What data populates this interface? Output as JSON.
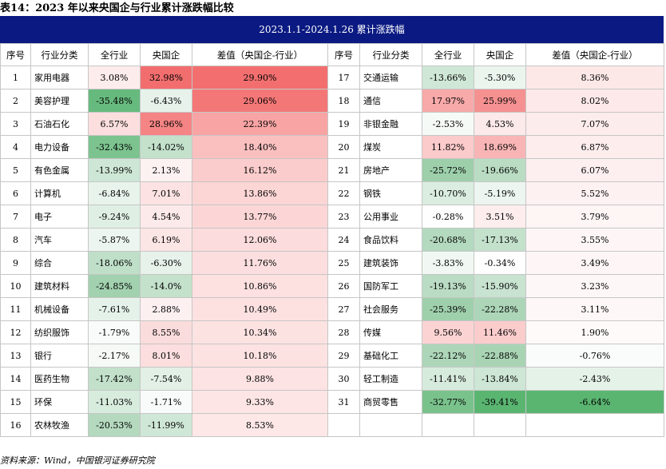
{
  "caption": "表14：2023 年以来央国企与行业累计涨跌幅比较",
  "title": "2023.1.1-2024.1.26 累计涨跌幅",
  "headers": [
    "序号",
    "行业分类",
    "全行业",
    "央国企",
    "差值（央国企-行业）",
    "序号",
    "行业分类",
    "全行业",
    "央国企",
    "差值（央国企-行业）"
  ],
  "left_rows": [
    {
      "no": "1",
      "name": "家用电器",
      "all": "3.08%",
      "soe": "32.98%",
      "diff": "29.90%",
      "c_all": "#fdecec",
      "c_soe": "#f26e6e",
      "c_diff": "#f36f6f"
    },
    {
      "no": "2",
      "name": "美容护理",
      "all": "-35.48%",
      "soe": "-6.43%",
      "diff": "29.06%",
      "c_all": "#67ba7e",
      "c_soe": "#e6f2ea",
      "c_diff": "#f47777"
    },
    {
      "no": "3",
      "name": "石油石化",
      "all": "6.57%",
      "soe": "28.96%",
      "diff": "22.39%",
      "c_all": "#fcdede",
      "c_soe": "#f58484",
      "c_diff": "#f8a4a4"
    },
    {
      "no": "4",
      "name": "电力设备",
      "all": "-32.43%",
      "soe": "-14.02%",
      "diff": "18.40%",
      "c_all": "#7cc38f",
      "c_soe": "#c3e1cb",
      "c_diff": "#fac0c0"
    },
    {
      "no": "5",
      "name": "有色金属",
      "all": "-13.99%",
      "soe": "2.13%",
      "diff": "16.12%",
      "c_all": "#cde6d5",
      "c_soe": "#fdf2f2",
      "c_diff": "#fbcccc"
    },
    {
      "no": "6",
      "name": "计算机",
      "all": "-6.84%",
      "soe": "7.01%",
      "diff": "13.86%",
      "c_all": "#e8f3eb",
      "c_soe": "#fce2e2",
      "c_diff": "#fcd5d5"
    },
    {
      "no": "7",
      "name": "电子",
      "all": "-9.24%",
      "soe": "4.54%",
      "diff": "13.77%",
      "c_all": "#dfefe4",
      "c_soe": "#fce9e9",
      "c_diff": "#fcd6d6"
    },
    {
      "no": "8",
      "name": "汽车",
      "all": "-5.87%",
      "soe": "6.19%",
      "diff": "12.06%",
      "c_all": "#ecf5ef",
      "c_soe": "#fce5e5",
      "c_diff": "#fcdcdc"
    },
    {
      "no": "9",
      "name": "综合",
      "all": "-18.06%",
      "soe": "-6.30%",
      "diff": "11.76%",
      "c_all": "#bfdfc8",
      "c_soe": "#e7f2ea",
      "c_diff": "#fcdede"
    },
    {
      "no": "10",
      "name": "建筑材料",
      "all": "-24.85%",
      "soe": "-14.0%",
      "diff": "10.86%",
      "c_all": "#a1d1ae",
      "c_soe": "#c3e1cb",
      "c_diff": "#fde0e0"
    },
    {
      "no": "11",
      "name": "机械设备",
      "all": "-7.61%",
      "soe": "2.88%",
      "diff": "10.49%",
      "c_all": "#e5f2e9",
      "c_soe": "#fdf0f0",
      "c_diff": "#fde1e1"
    },
    {
      "no": "12",
      "name": "纺织服饰",
      "all": "-1.79%",
      "soe": "8.55%",
      "diff": "10.34%",
      "c_all": "#f8fbf9",
      "c_soe": "#fbdcdc",
      "c_diff": "#fde2e2"
    },
    {
      "no": "13",
      "name": "银行",
      "all": "-2.17%",
      "soe": "8.01%",
      "diff": "10.18%",
      "c_all": "#f6faf7",
      "c_soe": "#fcdede",
      "c_diff": "#fde2e2"
    },
    {
      "no": "14",
      "name": "医药生物",
      "all": "-17.42%",
      "soe": "-7.54%",
      "diff": "9.88%",
      "c_all": "#c2e0ca",
      "c_soe": "#e2f0e6",
      "c_diff": "#fde3e3"
    },
    {
      "no": "15",
      "name": "环保",
      "all": "-11.03%",
      "soe": "-1.71%",
      "diff": "9.33%",
      "c_all": "#d8ecde",
      "c_soe": "#f8fbf9",
      "c_diff": "#fde5e5"
    },
    {
      "no": "16",
      "name": "农林牧渔",
      "all": "-20.53%",
      "soe": "-11.99%",
      "diff": "8.53%",
      "c_all": "#b4d9be",
      "c_soe": "#cfe7d6",
      "c_diff": "#fde7e7"
    }
  ],
  "right_rows": [
    {
      "no": "17",
      "name": "交通运输",
      "all": "-13.66%",
      "soe": "-5.30%",
      "diff": "8.36%",
      "c_all": "#cfe7d6",
      "c_soe": "#ebf5ee",
      "c_diff": "#fde8e8"
    },
    {
      "no": "18",
      "name": "通信",
      "all": "17.97%",
      "soe": "25.99%",
      "diff": "8.02%",
      "c_all": "#f8a9a9",
      "c_soe": "#f69191",
      "c_diff": "#fde9e9"
    },
    {
      "no": "19",
      "name": "非银金融",
      "all": "-2.53%",
      "soe": "4.53%",
      "diff": "7.07%",
      "c_all": "#f5faf7",
      "c_soe": "#fce9e9",
      "c_diff": "#fdecec"
    },
    {
      "no": "20",
      "name": "煤炭",
      "all": "11.82%",
      "soe": "18.69%",
      "diff": "6.87%",
      "c_all": "#fbcaca",
      "c_soe": "#f9b5b5",
      "c_diff": "#fdeded"
    },
    {
      "no": "21",
      "name": "房地产",
      "all": "-25.72%",
      "soe": "-19.66%",
      "diff": "6.07%",
      "c_all": "#9dcfab",
      "c_soe": "#b9dcc3",
      "c_diff": "#fdefef"
    },
    {
      "no": "22",
      "name": "钢铁",
      "all": "-10.70%",
      "soe": "-5.19%",
      "diff": "5.52%",
      "c_all": "#daede0",
      "c_soe": "#ecf5ef",
      "c_diff": "#fef1f1"
    },
    {
      "no": "23",
      "name": "公用事业",
      "all": "-0.28%",
      "soe": "3.51%",
      "diff": "3.79%",
      "c_all": "#fdfefd",
      "c_soe": "#fdeded",
      "c_diff": "#fef5f5"
    },
    {
      "no": "24",
      "name": "食品饮料",
      "all": "-20.68%",
      "soe": "-17.13%",
      "diff": "3.55%",
      "c_all": "#b3d9be",
      "c_soe": "#c3e1cb",
      "c_diff": "#fef6f6"
    },
    {
      "no": "25",
      "name": "建筑装饰",
      "all": "-3.83%",
      "soe": "-0.34%",
      "diff": "3.49%",
      "c_all": "#f1f8f3",
      "c_soe": "#fdfefd",
      "c_diff": "#fef6f6"
    },
    {
      "no": "26",
      "name": "国防军工",
      "all": "-19.13%",
      "soe": "-15.90%",
      "diff": "3.23%",
      "c_all": "#badcc4",
      "c_soe": "#c8e3d0",
      "c_diff": "#fef7f7"
    },
    {
      "no": "27",
      "name": "社会服务",
      "all": "-25.39%",
      "soe": "-22.28%",
      "diff": "3.11%",
      "c_all": "#9fd0ac",
      "c_soe": "#add6b8",
      "c_diff": "#fef7f7"
    },
    {
      "no": "28",
      "name": "传媒",
      "all": "9.56%",
      "soe": "11.46%",
      "diff": "1.90%",
      "c_all": "#fbd3d3",
      "c_soe": "#fbcccc",
      "c_diff": "#fefafa"
    },
    {
      "no": "29",
      "name": "基础化工",
      "all": "-22.12%",
      "soe": "-22.88%",
      "diff": "-0.76%",
      "c_all": "#add6b8",
      "c_soe": "#a9d4b4",
      "c_diff": "#f9fcfa"
    },
    {
      "no": "30",
      "name": "轻工制造",
      "all": "-11.41%",
      "soe": "-13.84%",
      "diff": "-2.43%",
      "c_all": "#d7ebdd",
      "c_soe": "#cde6d5",
      "c_diff": "#e5f2e8"
    },
    {
      "no": "31",
      "name": "商贸零售",
      "all": "-32.77%",
      "soe": "-39.41%",
      "diff": "-6.64%",
      "c_all": "#7ac28c",
      "c_soe": "#5ab571",
      "c_diff": "#5ab571"
    }
  ],
  "footer": "资料来源：Wind，中国银河证券研究院"
}
